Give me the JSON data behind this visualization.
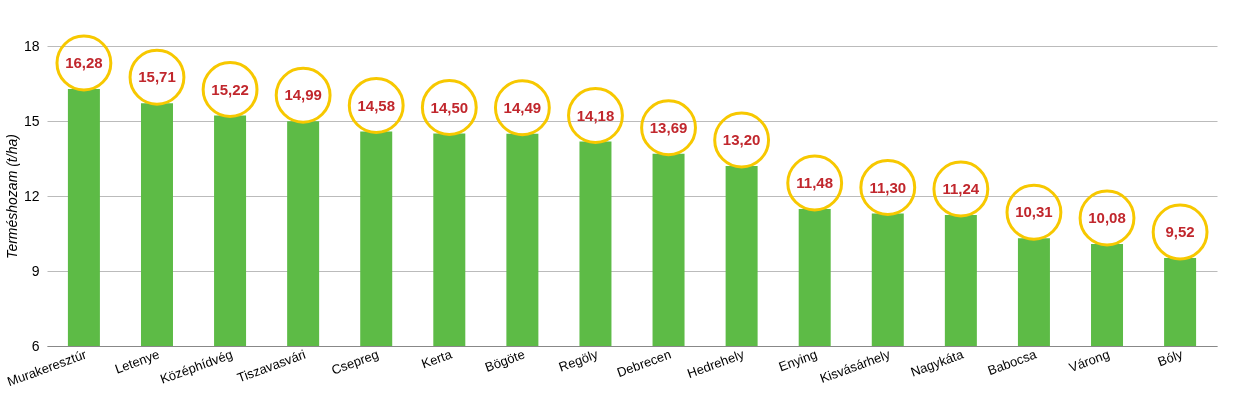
{
  "chart_data": {
    "type": "bar",
    "ylabel": "Terméshozam (t/ha)",
    "categories": [
      "Murakeresztúr",
      "Letenye",
      "Középhídvég",
      "Tiszavasvári",
      "Csepreg",
      "Kerta",
      "Bögöte",
      "Regöly",
      "Debrecen",
      "Hedrehely",
      "Enying",
      "Kisvásárhely",
      "Nagykáta",
      "Babocsa",
      "Várong",
      "Bóly"
    ],
    "values": [
      16.28,
      15.71,
      15.22,
      14.99,
      14.58,
      14.5,
      14.49,
      14.18,
      13.69,
      13.2,
      11.48,
      11.3,
      11.24,
      10.31,
      10.08,
      9.52
    ],
    "value_labels": [
      "16,28",
      "15,71",
      "15,22",
      "14,99",
      "14,58",
      "14,50",
      "14,49",
      "14,18",
      "13,69",
      "13,20",
      "11,48",
      "11,30",
      "11,24",
      "10,31",
      "10,08",
      "9,52"
    ],
    "color": "#5dbb46",
    "ylim": [
      6,
      18
    ],
    "yticks": [
      6,
      9,
      12,
      15,
      18
    ],
    "grid": "y"
  }
}
